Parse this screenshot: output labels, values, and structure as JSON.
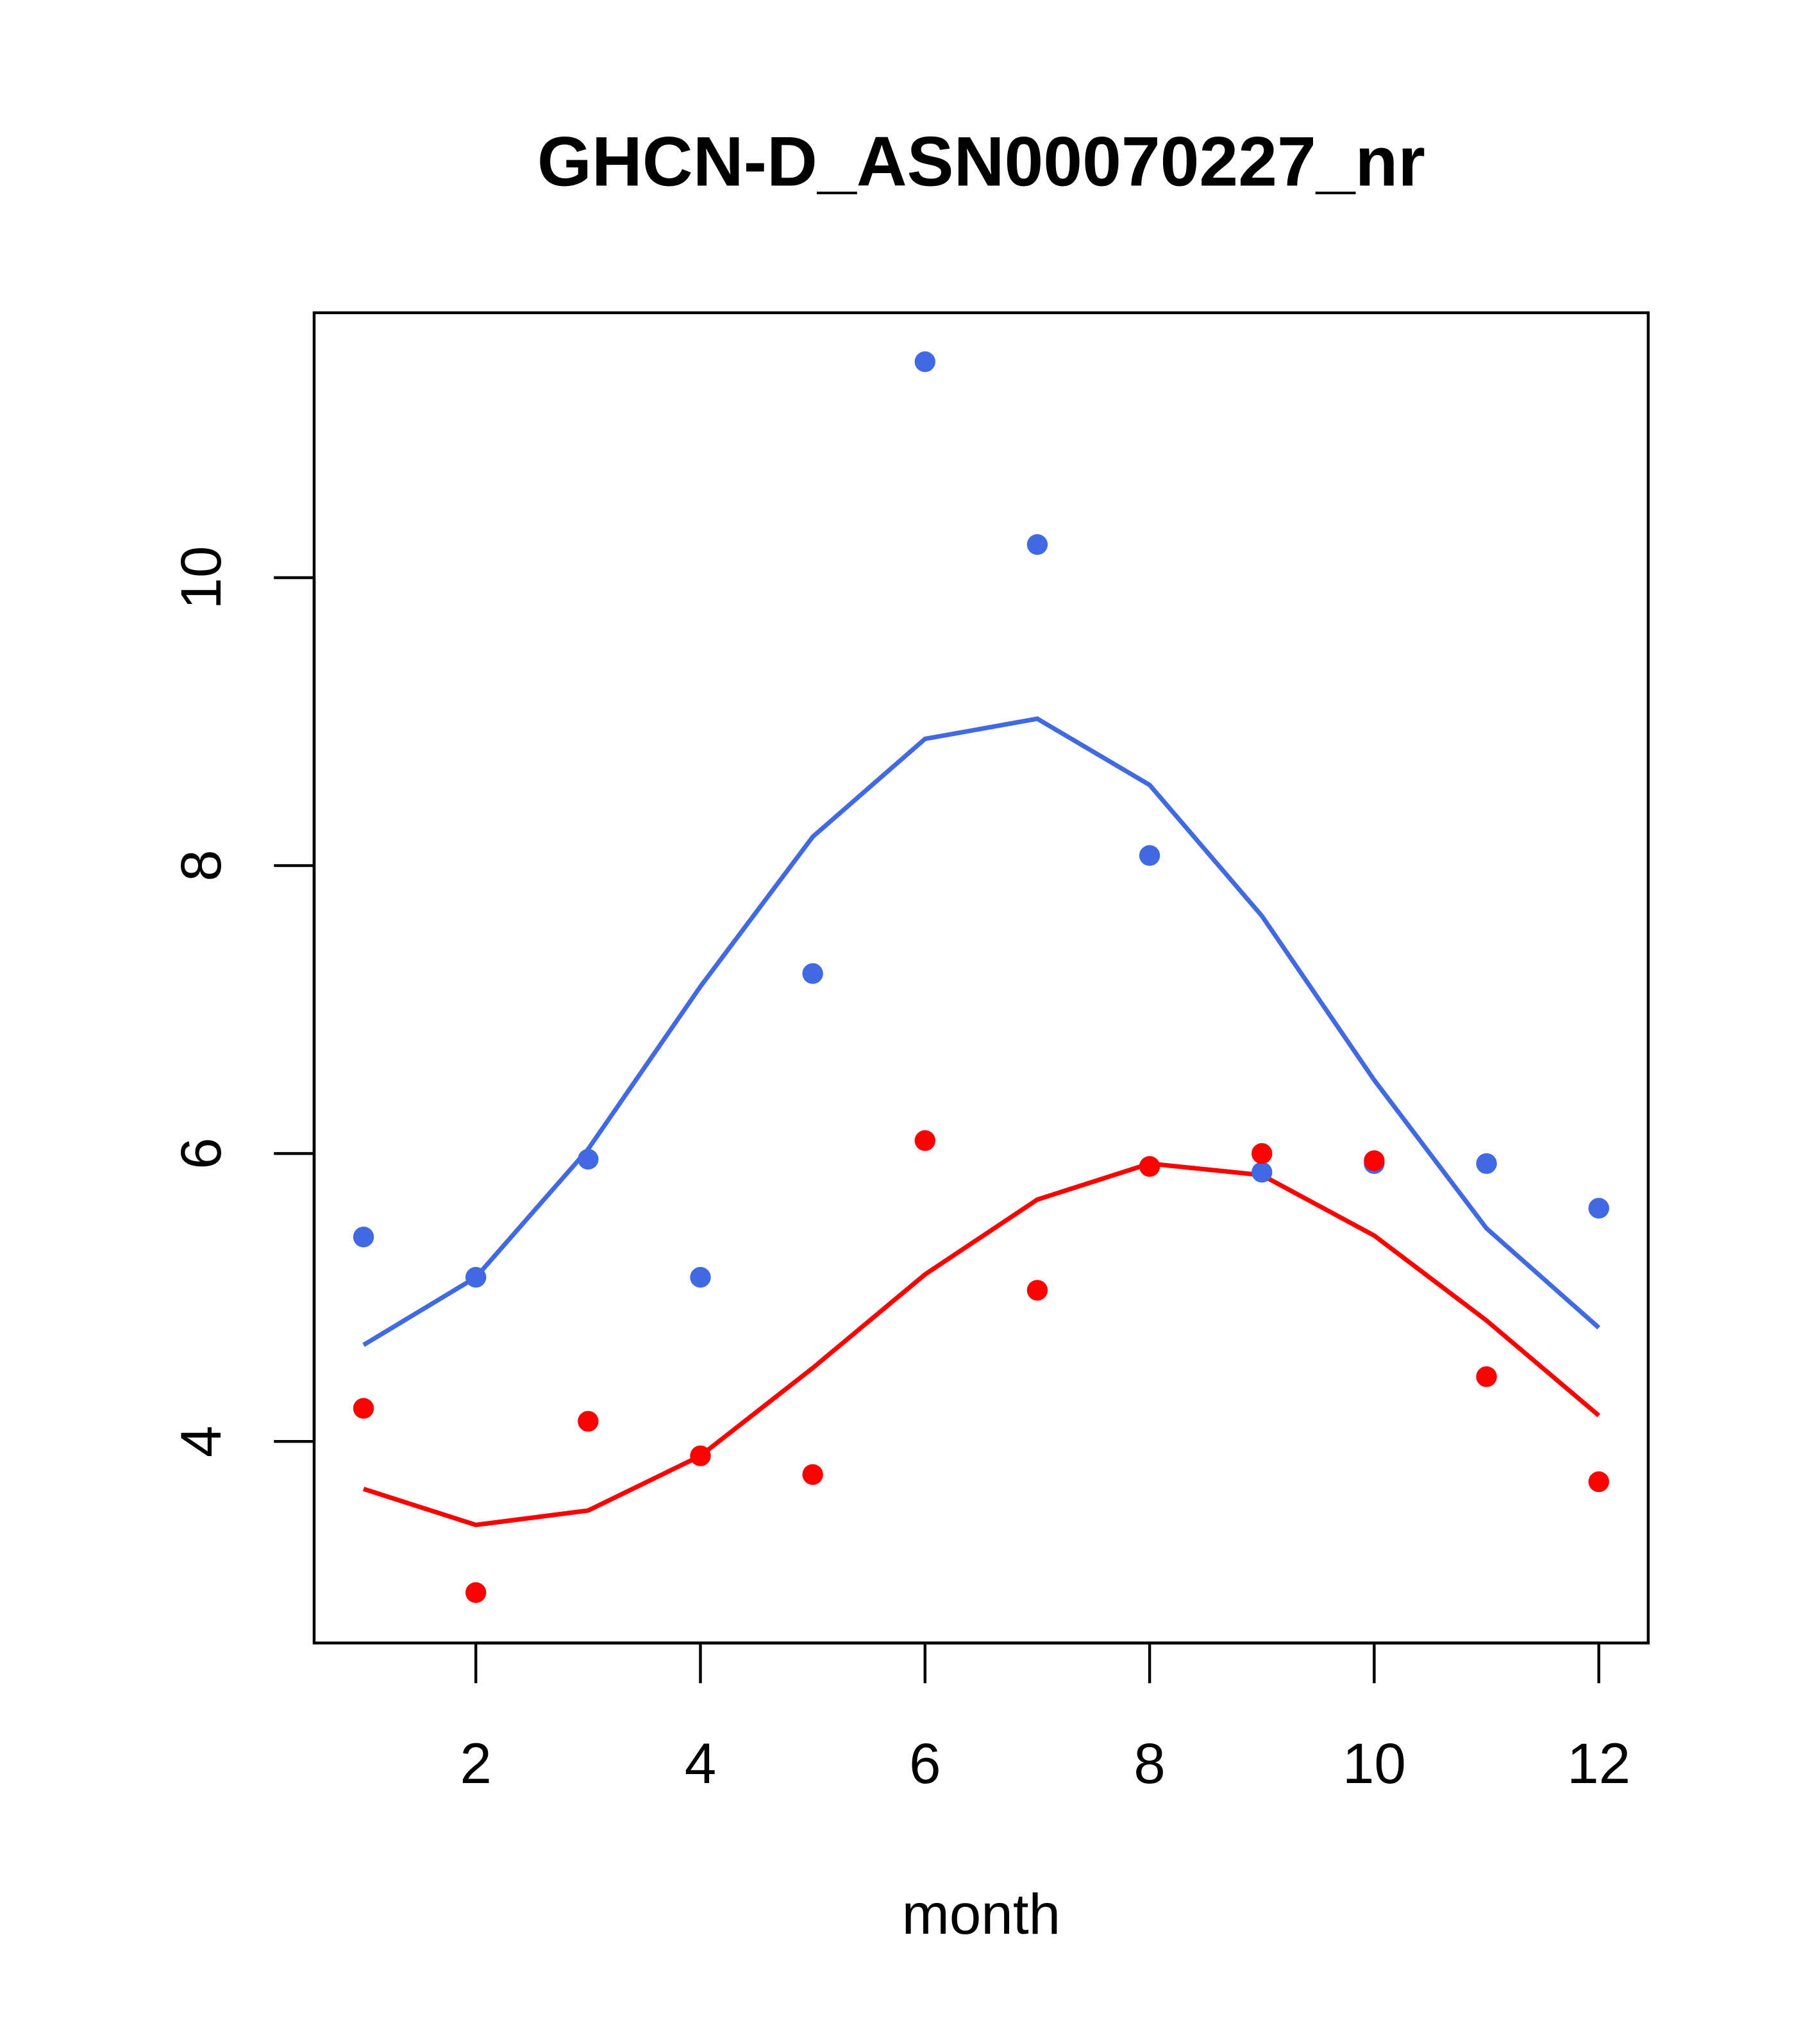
{
  "chart_data": {
    "type": "scatter",
    "title": "GHCN-D_ASN00070227_nr",
    "xlabel": "month",
    "ylabel": "",
    "xlim": [
      0.56,
      12.44
    ],
    "ylim": [
      2.6,
      11.84
    ],
    "xticks": [
      2,
      4,
      6,
      8,
      10,
      12
    ],
    "yticks": [
      4,
      6,
      8,
      10
    ],
    "grid": false,
    "x": [
      1,
      2,
      3,
      4,
      5,
      6,
      7,
      8,
      9,
      10,
      11,
      12
    ],
    "series": [
      {
        "name": "blue points",
        "kind": "points",
        "color": "#4169E1",
        "values": [
          5.42,
          5.14,
          5.96,
          5.14,
          7.25,
          11.5,
          10.23,
          8.07,
          5.87,
          5.93,
          5.93,
          5.62
        ]
      },
      {
        "name": "blue line",
        "kind": "line",
        "color": "#4169E1",
        "values": [
          4.67,
          5.14,
          6.03,
          7.16,
          8.2,
          8.88,
          9.02,
          8.56,
          7.65,
          6.51,
          5.48,
          4.79
        ]
      },
      {
        "name": "red points",
        "kind": "points",
        "color": "#FF0000",
        "values": [
          4.23,
          2.95,
          4.14,
          3.9,
          3.77,
          6.09,
          5.05,
          5.91,
          6.0,
          5.95,
          4.45,
          3.72
        ]
      },
      {
        "name": "red line",
        "kind": "line",
        "color": "#FF0000",
        "values": [
          3.67,
          3.42,
          3.52,
          3.9,
          4.51,
          5.16,
          5.68,
          5.93,
          5.85,
          5.43,
          4.84,
          4.18
        ]
      }
    ]
  }
}
